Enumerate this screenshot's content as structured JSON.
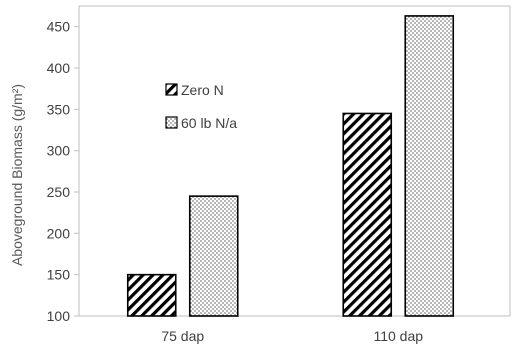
{
  "chart_data": {
    "type": "bar",
    "categories": [
      "75 dap",
      "110 dap"
    ],
    "series": [
      {
        "name": "Zero N",
        "pattern": "diagonal-hatch",
        "values": [
          150,
          345
        ]
      },
      {
        "name": "60 lb N/a",
        "pattern": "dots",
        "values": [
          245,
          463
        ]
      }
    ],
    "xlabel": "",
    "ylabel": "Aboveground Biomass (g/m²)",
    "ylim": [
      100,
      475
    ],
    "yticks": [
      100,
      150,
      200,
      250,
      300,
      350,
      400,
      450
    ],
    "grid": false,
    "legend_position": "left, inside plot",
    "colors": {
      "bar_stroke": "#000000",
      "axis": "#bfbfbf",
      "text": "#404040"
    }
  }
}
